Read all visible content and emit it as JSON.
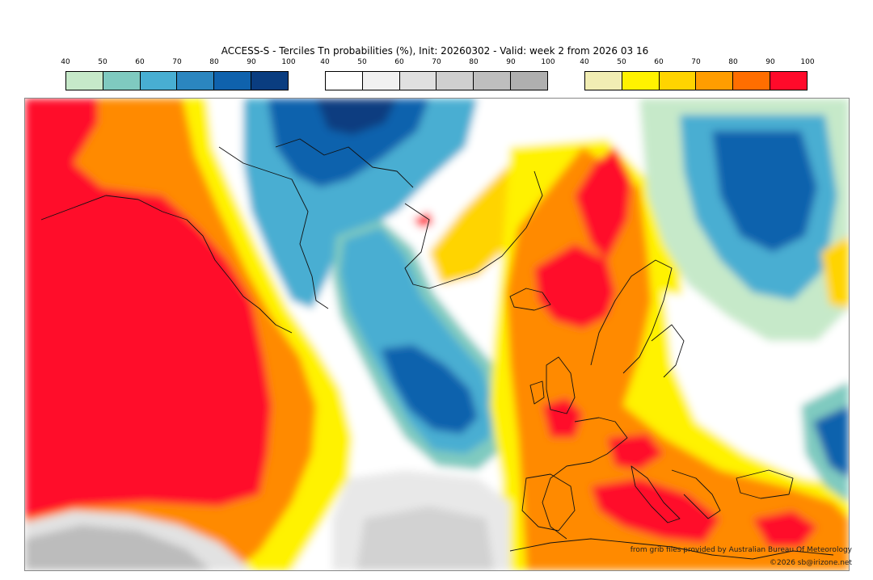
{
  "title": "ACCESS-S - Terciles Tn probabilities (%), Init: 20260302 - Valid: week 2 from 2026 03 16",
  "legends": {
    "below": {
      "ticks": [
        "40",
        "50",
        "60",
        "70",
        "80",
        "90",
        "100"
      ],
      "colors": [
        "#c6e9c9",
        "#7fcac0",
        "#48aed2",
        "#2b86c0",
        "#0f62ad",
        "#0a3d80"
      ]
    },
    "normal": {
      "ticks": [
        "40",
        "50",
        "60",
        "70",
        "80",
        "90",
        "100"
      ],
      "colors": [
        "#ffffff",
        "#f1f1f1",
        "#e0e0e0",
        "#cfcfcf",
        "#bebebe",
        "#afafaf"
      ]
    },
    "above": {
      "ticks": [
        "40",
        "50",
        "60",
        "70",
        "80",
        "90",
        "100"
      ],
      "colors": [
        "#f1edb3",
        "#fff200",
        "#ffd400",
        "#ff9d00",
        "#ff6e00",
        "#ff0a2a"
      ]
    }
  },
  "credits": {
    "source": "from grib files provided by Australian Bureau Of Meteorology",
    "copyright": "©2026 sb@irizone.net"
  }
}
